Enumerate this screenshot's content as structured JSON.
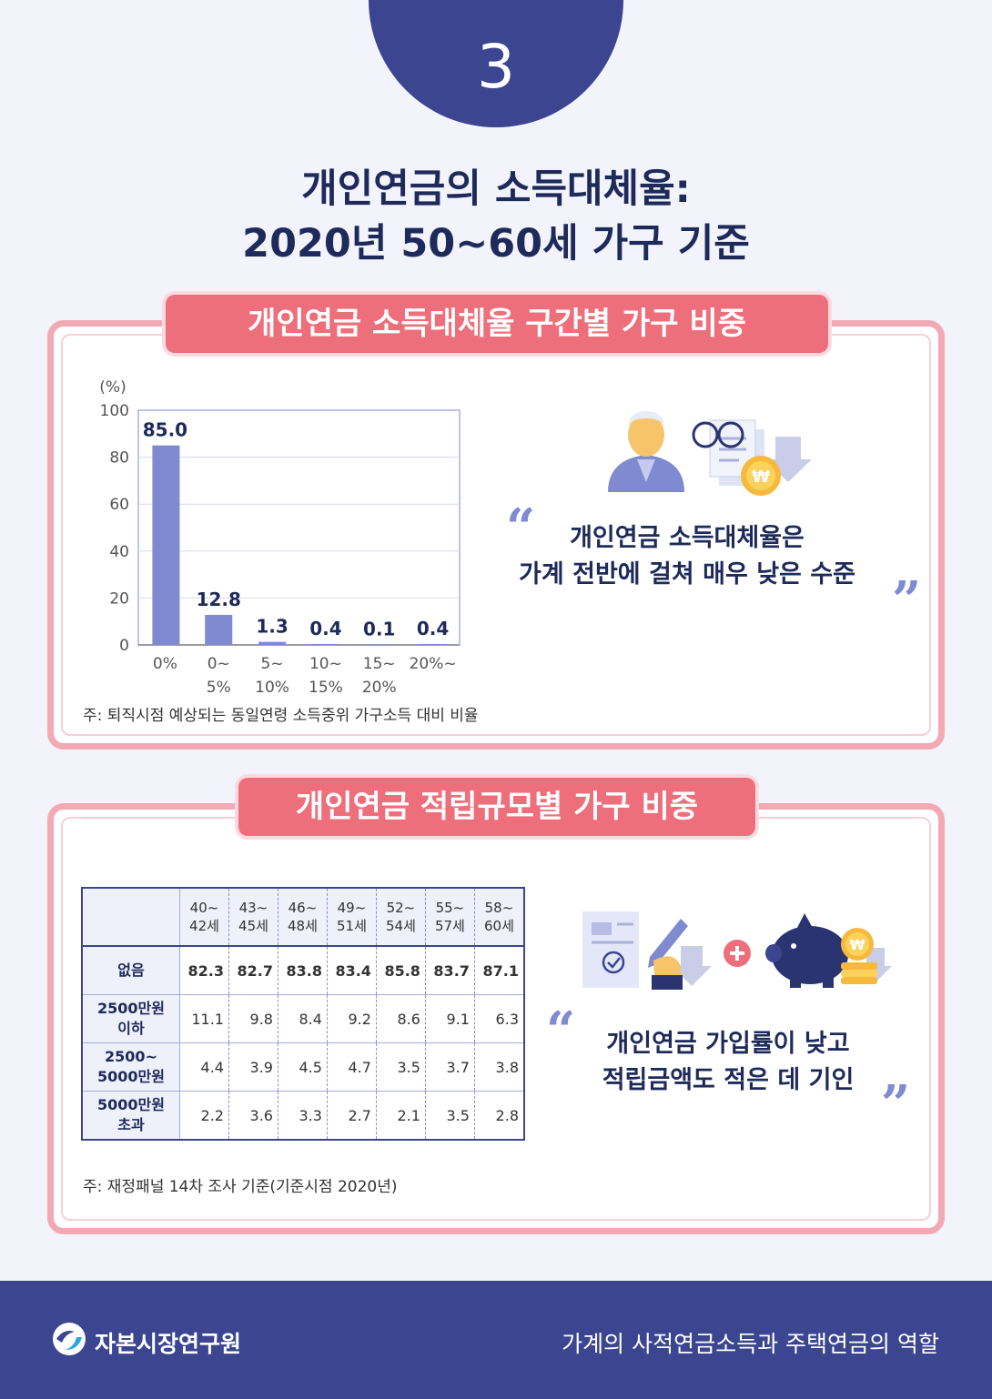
{
  "section_number": "3",
  "title": {
    "line1": "개인연금의 소득대체율:",
    "line2": "2020년 50~60세 가구 기준"
  },
  "panel1": {
    "ribbon": "개인연금 소득대체율 구간별 가구 비중",
    "note": "주: 퇴직시점 예상되는 동일연령 소득중위 가구소득 대비 비율",
    "quote_line1": "개인연금 소득대체율은",
    "quote_line2": "가계 전반에 걸쳐 매우 낮은 수준"
  },
  "panel2": {
    "ribbon": "개인연금 적립규모별 가구 비중",
    "note": "주: 재정패널 14차 조사 기준(기준시점 2020년)",
    "quote_line1": "개인연금 가입률이 낮고",
    "quote_line2": "적립금액도 적은 데 기인",
    "table": {
      "columns": [
        [
          "40~",
          "42세"
        ],
        [
          "43~",
          "45세"
        ],
        [
          "46~",
          "48세"
        ],
        [
          "49~",
          "51세"
        ],
        [
          "52~",
          "54세"
        ],
        [
          "55~",
          "57세"
        ],
        [
          "58~",
          "60세"
        ]
      ],
      "rows": [
        {
          "label": [
            "없음"
          ],
          "values": [
            "82.3",
            "82.7",
            "83.8",
            "83.4",
            "85.8",
            "83.7",
            "87.1"
          ]
        },
        {
          "label": [
            "2500만원",
            "이하"
          ],
          "values": [
            "11.1",
            "9.8",
            "8.4",
            "9.2",
            "8.6",
            "9.1",
            "6.3"
          ]
        },
        {
          "label": [
            "2500~",
            "5000만원"
          ],
          "values": [
            "4.4",
            "3.9",
            "4.5",
            "4.7",
            "3.5",
            "3.7",
            "3.8"
          ]
        },
        {
          "label": [
            "5000만원",
            "초과"
          ],
          "values": [
            "2.2",
            "3.6",
            "3.3",
            "2.7",
            "2.1",
            "3.5",
            "2.8"
          ]
        }
      ]
    }
  },
  "chart_data": {
    "type": "bar",
    "ylabel": "(%)",
    "ylim": [
      0,
      100
    ],
    "yticks": [
      0,
      20,
      40,
      60,
      80,
      100
    ],
    "grid": true,
    "categories": [
      [
        "0%"
      ],
      [
        "0~",
        "5%"
      ],
      [
        "5~",
        "10%"
      ],
      [
        "10~",
        "15%"
      ],
      [
        "15~",
        "20%"
      ],
      [
        "20%~"
      ]
    ],
    "values": [
      85.0,
      12.8,
      1.3,
      0.4,
      0.1,
      0.4
    ],
    "value_labels": [
      "85.0",
      "12.8",
      "1.3",
      "0.4",
      "0.1",
      "0.4"
    ],
    "bar_color": "#7f8ad0"
  },
  "footer": {
    "org_name": "자본시장연구원",
    "publication": "가계의 사적연금소득과 주택연금의 역할"
  },
  "colors": {
    "navy": "#3b4590",
    "accent_pink": "#ee6f7c",
    "bar": "#7f8ad0"
  }
}
